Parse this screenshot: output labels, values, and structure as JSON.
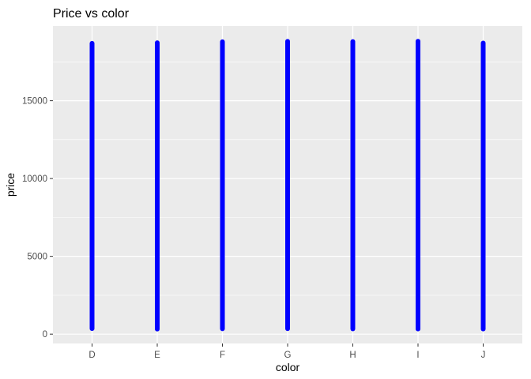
{
  "chart_data": {
    "type": "scatter",
    "title": "Price vs color",
    "xlabel": "color",
    "ylabel": "price",
    "categories": [
      "D",
      "E",
      "F",
      "G",
      "H",
      "I",
      "J"
    ],
    "series": [
      {
        "color": "#0000ff",
        "ranges": [
          {
            "x": "D",
            "min": 357,
            "max": 18693
          },
          {
            "x": "E",
            "min": 326,
            "max": 18731
          },
          {
            "x": "F",
            "min": 342,
            "max": 18791
          },
          {
            "x": "G",
            "min": 354,
            "max": 18818
          },
          {
            "x": "H",
            "min": 337,
            "max": 18803
          },
          {
            "x": "I",
            "min": 334,
            "max": 18823
          },
          {
            "x": "J",
            "min": 335,
            "max": 18710
          }
        ]
      }
    ],
    "yticks": [
      0,
      5000,
      10000,
      15000
    ],
    "ytick_labels": [
      "0",
      "5000",
      "10000",
      "15000"
    ],
    "ylim": [
      -600,
      19800
    ],
    "grid": true,
    "legend": "none",
    "panel_background": "#ebebeb",
    "grid_color": "#ffffff"
  }
}
